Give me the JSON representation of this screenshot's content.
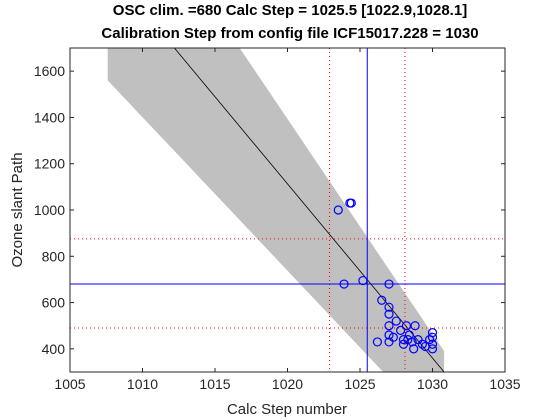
{
  "chart_data": {
    "type": "scatter",
    "title": [
      "OSC clim. =680   Calc Step = 1025.5 [1022.9,1028.1]",
      "Calibration Step from config file ICF15017.228 = 1030"
    ],
    "xlabel": "Calc Step number",
    "ylabel": "Ozone slant Path",
    "xlim": [
      1005,
      1035
    ],
    "ylim": [
      300,
      1700
    ],
    "xticks": [
      1005,
      1010,
      1015,
      1020,
      1025,
      1030,
      1035
    ],
    "yticks": [
      400,
      600,
      800,
      1000,
      1200,
      1400,
      1600
    ],
    "band": {
      "color": "#c0c0c0",
      "x": [
        1007.6,
        1007.6,
        1016.7,
        1030.8,
        1030.8,
        1026.6
      ],
      "y": [
        1560,
        1700,
        1700,
        390,
        300,
        300
      ]
    },
    "fit": {
      "color": "#000000",
      "x": [
        1012.2,
        1030.8
      ],
      "y": [
        1700,
        300
      ]
    },
    "calc_step": 1025.5,
    "calc_step_ci": [
      1022.9,
      1028.1
    ],
    "osc": 680,
    "osc_ci": [
      490,
      875
    ],
    "ref_color": "#0000ff",
    "ci_color": "#ff0000",
    "scatter": {
      "color": "#0000ff",
      "x": [
        1023.5,
        1024.3,
        1024.4,
        1023.9,
        1025.2,
        1026.2,
        1026.5,
        1027,
        1027,
        1027,
        1027,
        1027,
        1027,
        1027.5,
        1027.8,
        1028,
        1028,
        1028.2,
        1028.4,
        1028.6,
        1028.7,
        1028.8,
        1029,
        1029.3,
        1029.5,
        1029.8,
        1030,
        1030,
        1030,
        1030,
        1027.3,
        1028.3
      ],
      "y": [
        1000,
        1030,
        1030,
        680,
        695,
        430,
        610,
        680,
        580,
        550,
        500,
        460,
        430,
        520,
        480,
        440,
        420,
        500,
        460,
        430,
        400,
        500,
        440,
        420,
        410,
        440,
        470,
        450,
        420,
        400,
        450,
        440
      ]
    }
  }
}
